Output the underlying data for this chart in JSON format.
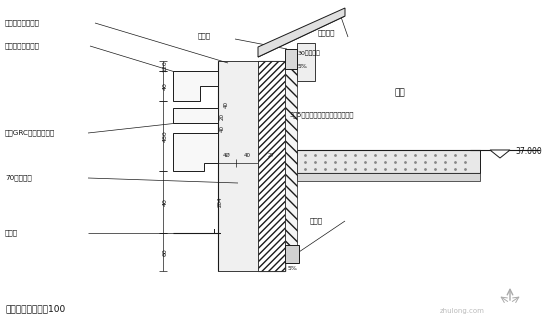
{
  "bg_color": "#ffffff",
  "lc": "#1a1a1a",
  "labels": {
    "yanmian_anchor": "岩棉板专用锁固件",
    "decor_support": "装饰檩线轻锂支架",
    "grc_line": "成品GRC外墙装饰檩线",
    "rock_wool": "70厚岩棉板",
    "drip": "滴水线",
    "corner_mesh": "附加网格布转觓各100",
    "window_frame_top": "窗附框",
    "foam_board": "30厚聚苯板",
    "pct_top": "5%",
    "pct_bot": "5%",
    "face_brick_sill": "面砖窗台",
    "dining": "餐厅",
    "layer_35": "3～5厚抹面层砂浆复合材料网格布",
    "elevation": "37.000",
    "window_frame_bot": "窗附框",
    "dim_120": "120",
    "dim_40a": "40",
    "dim_480": "480",
    "dim_40b": "40",
    "dim_60": "60",
    "dim_40c": "4Ø",
    "dim_40d": "40",
    "dim_27": "27",
    "dim_204": "204",
    "dim_40e": "40",
    "dim_20": "20",
    "dim_40f": "40"
  }
}
